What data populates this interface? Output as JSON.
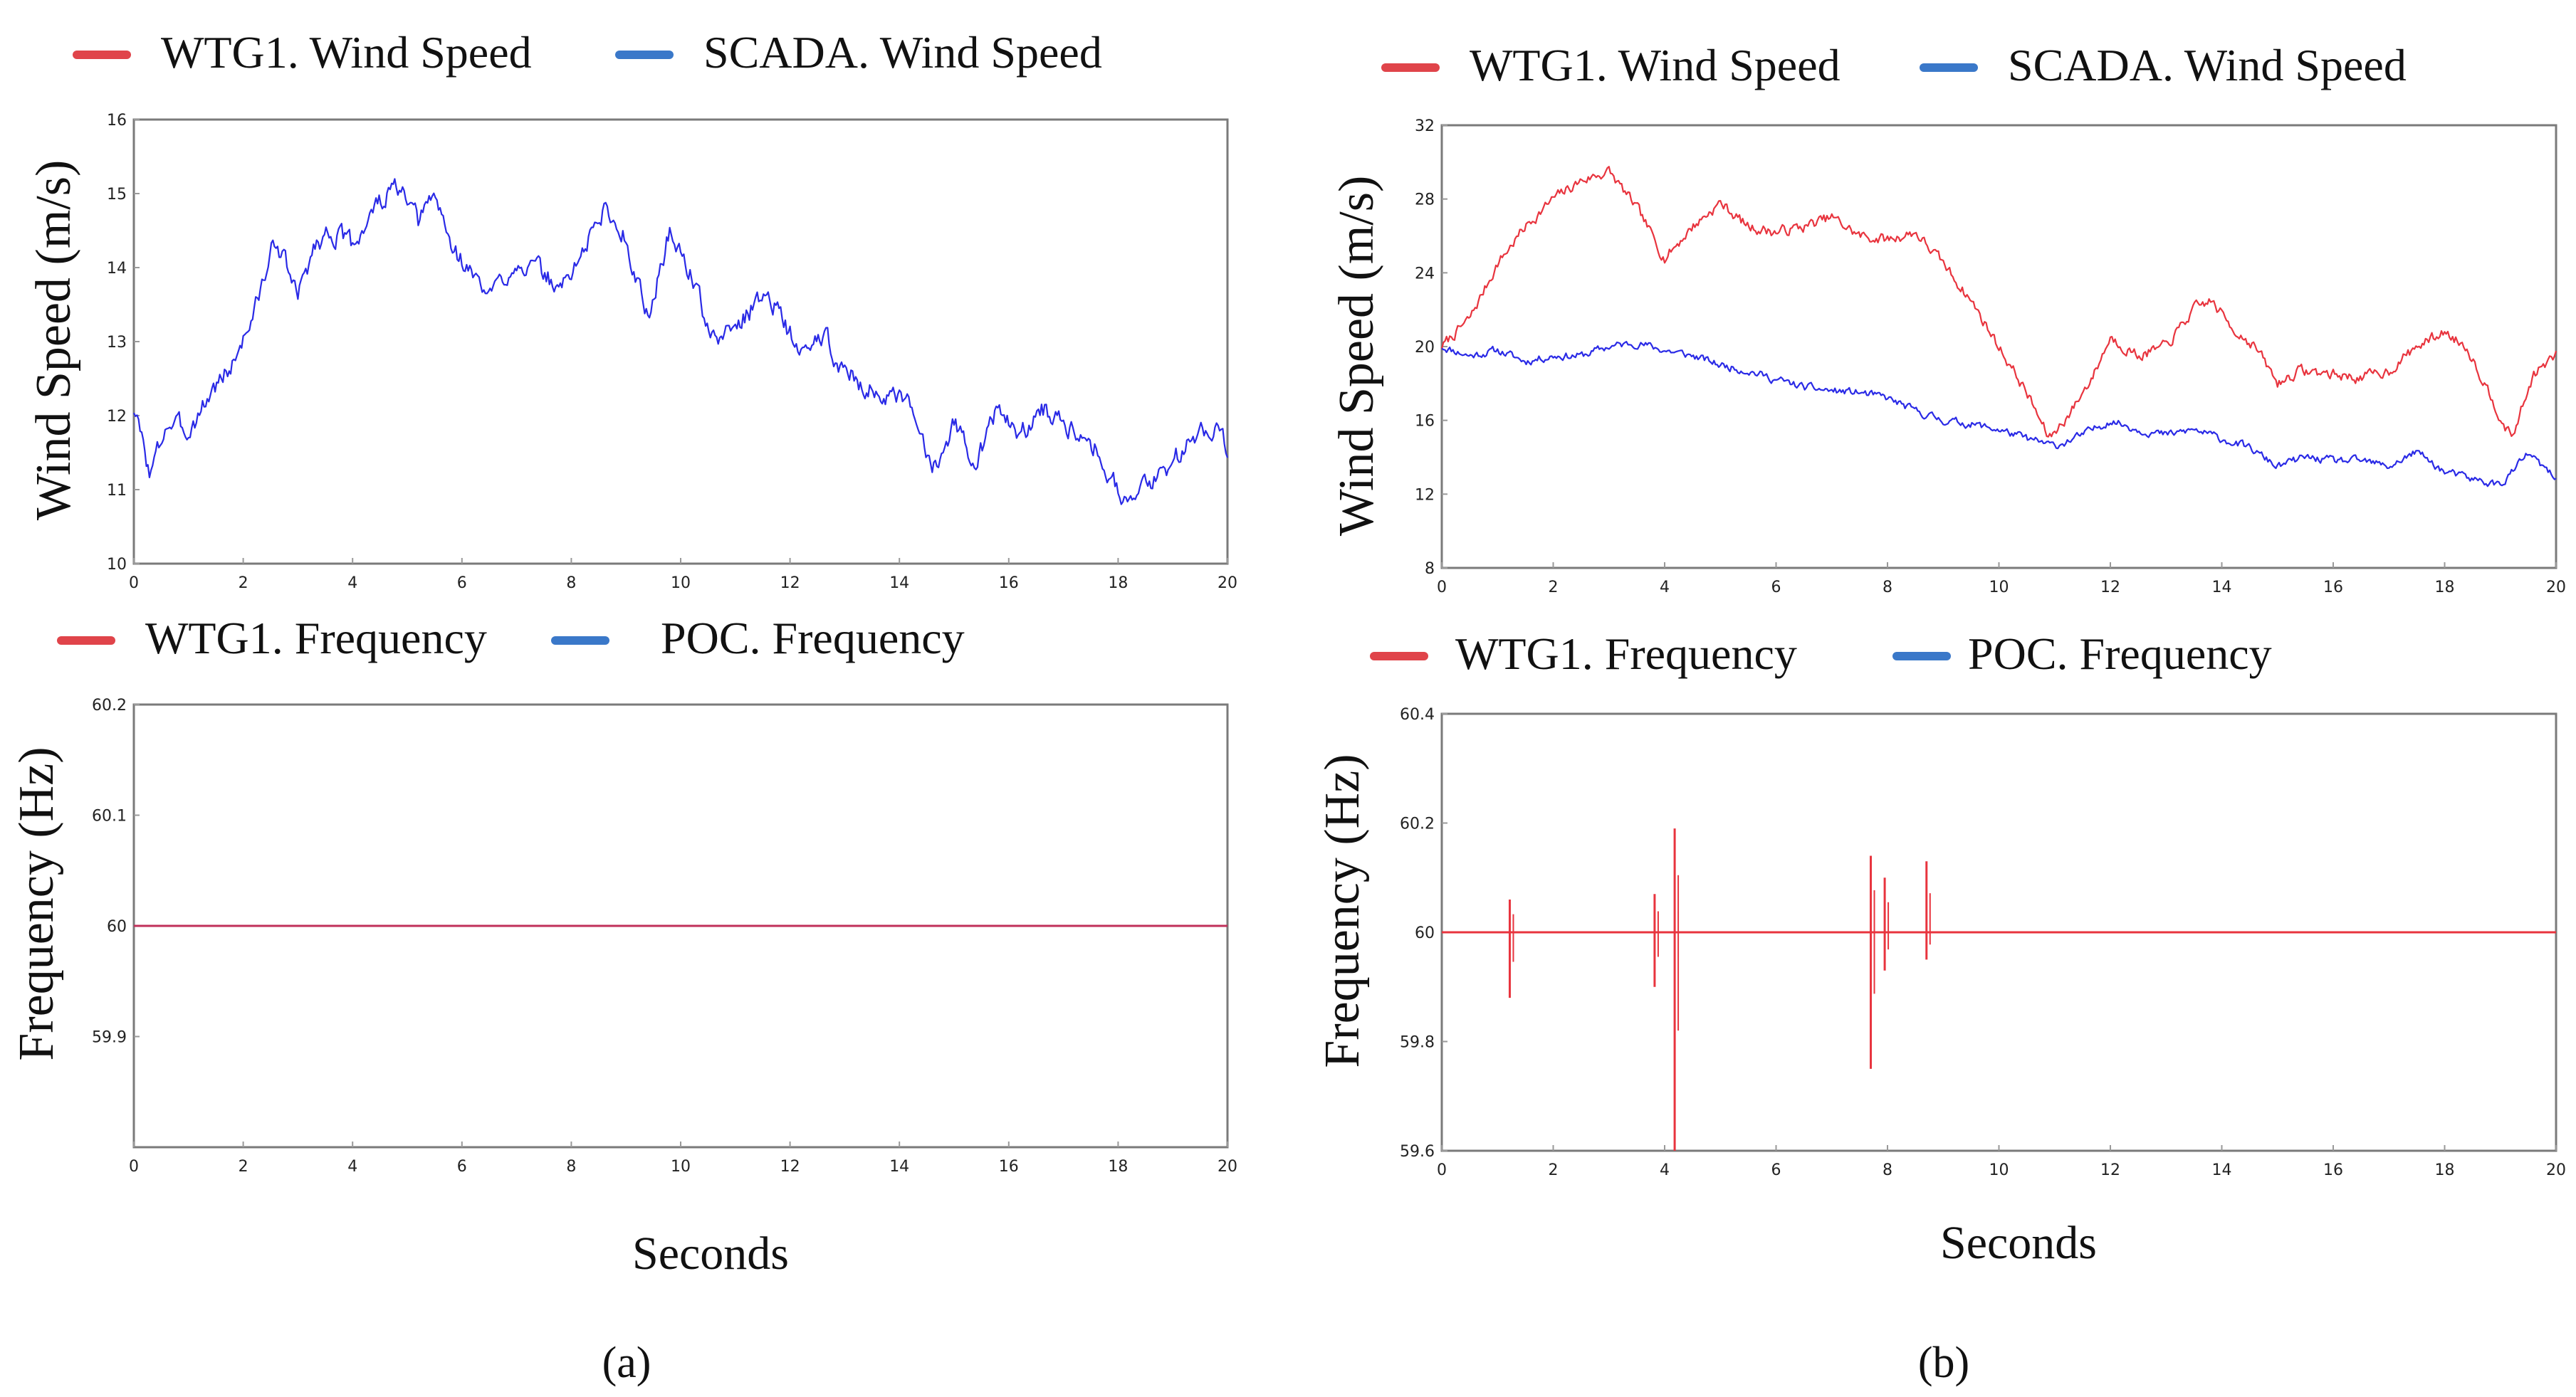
{
  "colors": {
    "wtg1": "#e0444a",
    "scada": "#3a78c9",
    "trace_blue": "#2a2ae6",
    "trace_red": "#e8343e",
    "trace_flat_red": "#c0305a",
    "frame": "#7a7a7a",
    "tick_mark": "#999999"
  },
  "chart_data": [
    {
      "id": "a-wind",
      "type": "line",
      "panel": "(a)",
      "legend": [
        "WTG1. Wind Speed",
        "SCADA. Wind Speed"
      ],
      "ylabel": "Wind Speed (m/s)",
      "xlabel": "",
      "xlim": [
        0,
        20
      ],
      "ylim": [
        10,
        16
      ],
      "xticks": [
        "0",
        "2",
        "4",
        "6",
        "8",
        "10",
        "12",
        "14",
        "16",
        "18",
        "20"
      ],
      "yticks": [
        "10",
        "11",
        "12",
        "13",
        "14",
        "15",
        "16"
      ],
      "series": [
        {
          "name": "SCADA. Wind Speed",
          "color_key": "trace_blue",
          "noise": 0.12,
          "seed": 3,
          "x": [
            0,
            0.3,
            0.6,
            1.0,
            1.4,
            1.8,
            2.2,
            2.6,
            3.0,
            3.3,
            3.6,
            4.0,
            4.4,
            4.8,
            5.2,
            5.5,
            5.8,
            6.2,
            6.5,
            7.0,
            7.5,
            7.8,
            8.2,
            8.6,
            9.0,
            9.4,
            9.8,
            10.2,
            10.6,
            11.0,
            11.6,
            12.2,
            12.6,
            13.0,
            13.6,
            14.2,
            14.6,
            15.0,
            15.4,
            15.8,
            16.2,
            16.6,
            17.0,
            17.4,
            17.8,
            18.2,
            18.6,
            19.0,
            19.4,
            19.8,
            20.0
          ],
          "y": [
            12.1,
            11.2,
            11.9,
            11.8,
            12.3,
            12.7,
            13.4,
            14.4,
            13.6,
            14.3,
            14.5,
            14.3,
            14.8,
            15.1,
            14.6,
            15.0,
            14.3,
            13.9,
            13.6,
            14.1,
            13.9,
            13.7,
            14.2,
            14.8,
            14.4,
            13.3,
            14.5,
            13.9,
            13.0,
            13.2,
            13.7,
            12.8,
            13.1,
            12.6,
            12.3,
            12.1,
            11.3,
            11.9,
            11.4,
            12.1,
            11.7,
            12.1,
            11.9,
            11.8,
            11.3,
            10.8,
            11.1,
            11.4,
            11.7,
            11.9,
            11.6
          ]
        }
      ]
    },
    {
      "id": "a-freq",
      "type": "line",
      "panel": "(a)",
      "legend": [
        "WTG1. Frequency",
        "POC. Frequency"
      ],
      "ylabel": "Frequency (Hz)",
      "xlabel": "Seconds",
      "xlim": [
        0,
        20
      ],
      "ylim": [
        59.8,
        60.2
      ],
      "xticks": [
        "0",
        "2",
        "4",
        "6",
        "8",
        "10",
        "12",
        "14",
        "16",
        "18",
        "20"
      ],
      "yticks": [
        "59.9",
        "60",
        "60.1",
        "60.2"
      ],
      "series": [
        {
          "name": "POC. Frequency",
          "color_key": "trace_blue",
          "x": [
            0,
            20
          ],
          "y": [
            60,
            60
          ]
        },
        {
          "name": "WTG1. Frequency",
          "color_key": "trace_flat_red",
          "x": [
            0,
            20
          ],
          "y": [
            60,
            60
          ]
        }
      ]
    },
    {
      "id": "b-wind",
      "type": "line",
      "panel": "(b)",
      "legend": [
        "WTG1. Wind Speed",
        "SCADA. Wind Speed"
      ],
      "ylabel": "Wind Speed (m/s)",
      "xlabel": "",
      "xlim": [
        0,
        20
      ],
      "ylim": [
        8,
        32
      ],
      "xticks": [
        "0",
        "2",
        "4",
        "6",
        "8",
        "10",
        "12",
        "14",
        "16",
        "18",
        "20"
      ],
      "yticks": [
        "8",
        "12",
        "16",
        "20",
        "24",
        "28",
        "32"
      ],
      "series": [
        {
          "name": "WTG1. Wind Speed",
          "color_key": "trace_red",
          "noise": 0.25,
          "seed": 7,
          "x": [
            0,
            0.5,
            1.0,
            1.5,
            2.0,
            2.5,
            3.0,
            3.5,
            4.0,
            4.5,
            5.0,
            5.5,
            6.0,
            6.5,
            7.0,
            7.5,
            8.0,
            8.5,
            9.0,
            9.5,
            10.0,
            10.5,
            10.9,
            11.3,
            11.7,
            12.0,
            12.5,
            13.0,
            13.5,
            13.8,
            14.2,
            14.6,
            15.0,
            15.4,
            16.0,
            16.5,
            17.0,
            17.5,
            18.0,
            18.4,
            18.8,
            19.2,
            19.6,
            20.0
          ],
          "y": [
            20.0,
            21.5,
            24.5,
            26.5,
            28.0,
            29.0,
            29.5,
            27.5,
            24.8,
            26.5,
            27.8,
            26.5,
            26.2,
            26.5,
            27.0,
            26.0,
            25.8,
            26.2,
            24.5,
            22.5,
            20.0,
            17.5,
            15.0,
            16.5,
            18.5,
            20.5,
            19.5,
            20.0,
            22.0,
            22.5,
            21.0,
            20.0,
            18.0,
            18.7,
            18.5,
            18.3,
            18.7,
            20.0,
            20.8,
            20.0,
            17.5,
            15.0,
            18.5,
            19.5
          ]
        },
        {
          "name": "SCADA. Wind Speed",
          "color_key": "trace_blue",
          "noise": 0.18,
          "seed": 11,
          "x": [
            0,
            0.5,
            1.0,
            1.5,
            2.0,
            2.5,
            3.0,
            3.5,
            4.0,
            4.5,
            5.0,
            5.5,
            6.0,
            6.5,
            7.0,
            7.5,
            8.0,
            8.5,
            9.0,
            9.5,
            10.0,
            10.5,
            11.0,
            11.5,
            12.0,
            12.5,
            13.0,
            13.5,
            14.0,
            14.5,
            15.0,
            15.5,
            16.0,
            16.5,
            17.0,
            17.5,
            18.0,
            18.5,
            19.0,
            19.5,
            20.0
          ],
          "y": [
            20.0,
            19.5,
            19.8,
            19.2,
            19.5,
            19.5,
            20.0,
            20.2,
            19.8,
            19.5,
            19.0,
            18.7,
            18.2,
            17.8,
            17.6,
            17.5,
            17.2,
            16.5,
            16.0,
            15.8,
            15.5,
            15.0,
            14.6,
            15.2,
            16.0,
            15.5,
            15.2,
            15.5,
            15.0,
            14.5,
            13.5,
            14.0,
            13.8,
            13.8,
            13.5,
            14.3,
            13.2,
            12.8,
            12.5,
            14.2,
            12.8
          ]
        }
      ]
    },
    {
      "id": "b-freq",
      "type": "line",
      "panel": "(b)",
      "legend": [
        "WTG1. Frequency",
        "POC. Frequency"
      ],
      "ylabel": "Frequency (Hz)",
      "xlabel": "Seconds",
      "xlim": [
        0,
        20
      ],
      "ylim": [
        59.6,
        60.4
      ],
      "xticks": [
        "0",
        "2",
        "4",
        "6",
        "8",
        "10",
        "12",
        "14",
        "16",
        "18",
        "20"
      ],
      "yticks": [
        "59.6",
        "59.8",
        "60",
        "60.2",
        "60.4"
      ],
      "series": [
        {
          "name": "POC. Frequency",
          "color_key": "trace_blue",
          "x": [
            0,
            20
          ],
          "y": [
            60,
            60
          ]
        },
        {
          "name": "WTG1. Frequency",
          "color_key": "trace_red",
          "x": [
            0,
            20
          ],
          "y": [
            60,
            60
          ],
          "spikes": [
            {
              "x": 1.22,
              "min": 59.88,
              "max": 60.06
            },
            {
              "x": 3.82,
              "min": 59.9,
              "max": 60.07
            },
            {
              "x": 4.18,
              "min": 59.6,
              "max": 60.19
            },
            {
              "x": 7.7,
              "min": 59.75,
              "max": 60.14
            },
            {
              "x": 7.95,
              "min": 59.93,
              "max": 60.1
            },
            {
              "x": 8.7,
              "min": 59.95,
              "max": 60.13
            }
          ]
        }
      ]
    }
  ],
  "panel_labels": {
    "a": "(a)",
    "b": "(b)"
  }
}
